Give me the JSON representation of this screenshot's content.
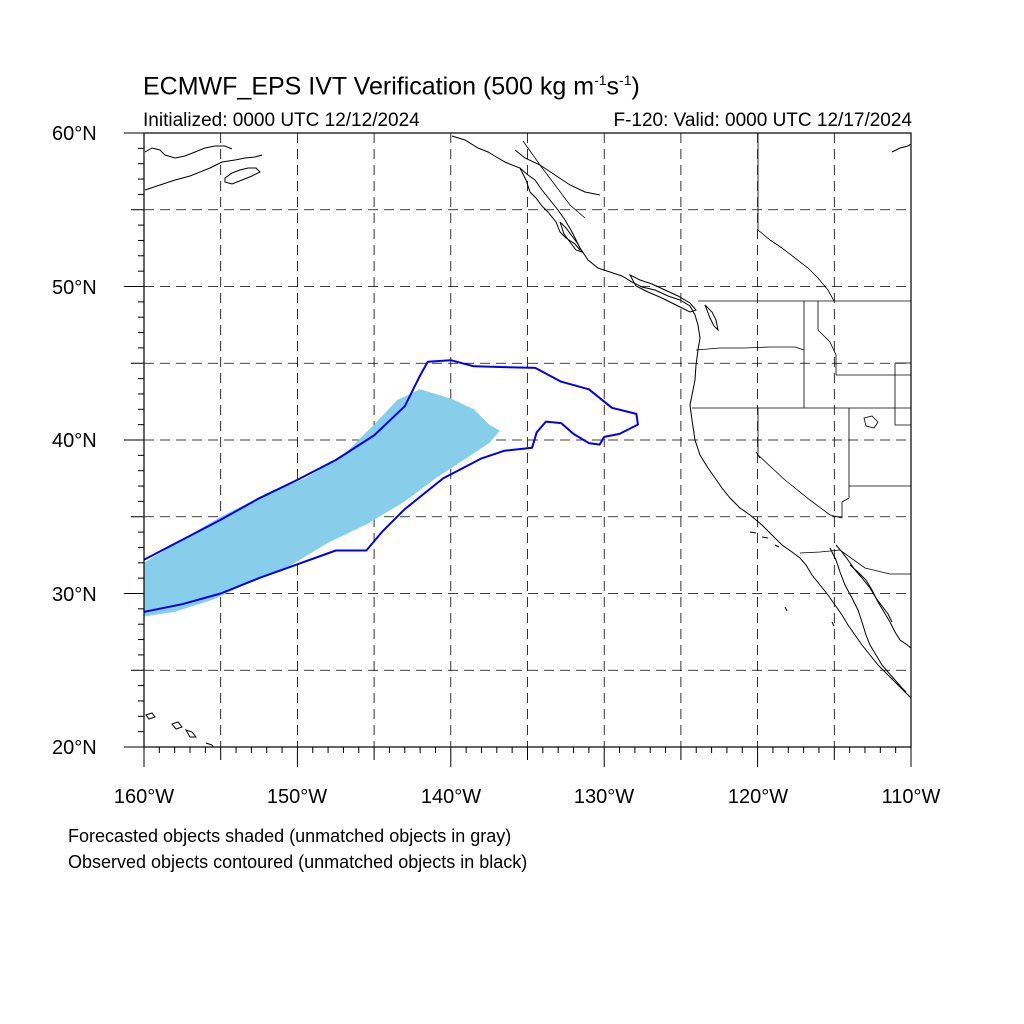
{
  "title": {
    "prefix": "ECMWF_EPS IVT Verification (500 kg m",
    "exp1": "-1",
    "mid": "s",
    "exp2": "-1",
    "suffix": ")"
  },
  "subtitle_left": "Initialized: 0000 UTC 12/12/2024",
  "subtitle_right": "F-120: Valid: 0000 UTC 12/17/2024",
  "lat_labels": [
    "60°N",
    "50°N",
    "40°N",
    "30°N",
    "20°N"
  ],
  "lon_labels": [
    "160°W",
    "150°W",
    "140°W",
    "130°W",
    "120°W",
    "110°W"
  ],
  "notes": [
    "Forecasted objects shaded (unmatched objects in gray)",
    "Observed objects contoured (unmatched objects in black)"
  ],
  "colors": {
    "forecast_fill": "#87ceea",
    "observed_contour": "#0000ee",
    "coastline": "#000000",
    "grid": "#000000"
  },
  "map": {
    "lon_range": [
      -160,
      -110
    ],
    "lat_range": [
      20,
      60
    ],
    "grid_lon_step": 5,
    "grid_lat_step": 5,
    "grid_style": "dashed",
    "forecast_object_lonlat": [
      [
        -160.0,
        32.0
      ],
      [
        -157.5,
        33.5
      ],
      [
        -155.0,
        35.0
      ],
      [
        -152.0,
        36.5
      ],
      [
        -149.5,
        37.5
      ],
      [
        -147.0,
        39.0
      ],
      [
        -145.0,
        41.0
      ],
      [
        -143.5,
        42.6
      ],
      [
        -142.0,
        43.3
      ],
      [
        -140.0,
        42.7
      ],
      [
        -138.5,
        42.0
      ],
      [
        -137.5,
        41.0
      ],
      [
        -136.8,
        40.6
      ],
      [
        -137.5,
        39.8
      ],
      [
        -139.0,
        38.8
      ],
      [
        -141.0,
        37.5
      ],
      [
        -143.0,
        36.0
      ],
      [
        -145.5,
        34.5
      ],
      [
        -148.0,
        33.3
      ],
      [
        -150.5,
        31.8
      ],
      [
        -153.0,
        30.8
      ],
      [
        -155.5,
        29.6
      ],
      [
        -158.0,
        28.8
      ],
      [
        -160.0,
        28.5
      ]
    ],
    "observed_object_lonlat": [
      [
        -160.0,
        32.2
      ],
      [
        -155.0,
        34.8
      ],
      [
        -152.5,
        36.2
      ],
      [
        -150.0,
        37.4
      ],
      [
        -147.5,
        38.7
      ],
      [
        -145.0,
        40.3
      ],
      [
        -143.0,
        42.2
      ],
      [
        -142.0,
        44.2
      ],
      [
        -141.5,
        45.1
      ],
      [
        -140.0,
        45.2
      ],
      [
        -138.5,
        44.8
      ],
      [
        -134.5,
        44.7
      ],
      [
        -132.8,
        43.8
      ],
      [
        -131.0,
        43.3
      ],
      [
        -129.5,
        42.1
      ],
      [
        -127.9,
        41.7
      ],
      [
        -127.8,
        41.0
      ],
      [
        -129.0,
        40.4
      ],
      [
        -130.0,
        40.2
      ],
      [
        -130.3,
        39.7
      ],
      [
        -131.0,
        39.8
      ],
      [
        -132.0,
        40.4
      ],
      [
        -132.8,
        41.1
      ],
      [
        -133.8,
        41.2
      ],
      [
        -134.4,
        40.5
      ],
      [
        -134.7,
        39.5
      ],
      [
        -136.5,
        39.3
      ],
      [
        -138.0,
        38.8
      ],
      [
        -140.5,
        37.5
      ],
      [
        -143.0,
        35.5
      ],
      [
        -144.5,
        34.0
      ],
      [
        -145.5,
        32.8
      ],
      [
        -147.5,
        32.8
      ],
      [
        -150.0,
        31.9
      ],
      [
        -152.5,
        31.0
      ],
      [
        -155.0,
        30.0
      ],
      [
        -157.5,
        29.3
      ],
      [
        -160.0,
        28.8
      ]
    ]
  }
}
